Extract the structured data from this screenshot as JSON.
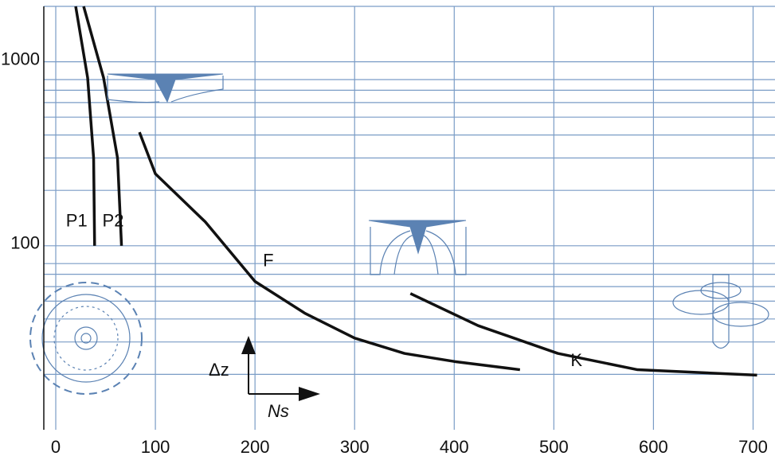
{
  "chart_data": {
    "type": "line",
    "xlim": [
      -12,
      722
    ],
    "xticks": [
      0,
      100,
      200,
      300,
      400,
      500,
      600,
      700
    ],
    "ylim": [
      10,
      2000
    ],
    "yticks": [
      100,
      1000
    ],
    "y_minor_ticks": [
      20,
      30,
      40,
      50,
      60,
      70,
      80,
      200,
      300,
      400,
      500,
      600,
      700,
      800,
      2000
    ],
    "log_y": true,
    "grid": true,
    "series": [
      {
        "name": "P1",
        "color": "#111111",
        "x": [
          20,
          32,
          38,
          39
        ],
        "values": [
          2000,
          818,
          300,
          100
        ]
      },
      {
        "name": "P2",
        "color": "#111111",
        "x": [
          28,
          48,
          62,
          66
        ],
        "values": [
          2000,
          818,
          300,
          100
        ]
      },
      {
        "name": "F",
        "color": "#111111",
        "x": [
          84,
          100,
          150,
          200,
          250,
          300,
          350,
          400,
          466
        ],
        "values": [
          414,
          246,
          135,
          64,
          43,
          31.5,
          26,
          23.5,
          21.2
        ]
      },
      {
        "name": "K",
        "color": "#111111",
        "x": [
          356,
          424,
          504,
          584,
          704
        ],
        "values": [
          55,
          36.8,
          26,
          21.2,
          19.8
        ]
      }
    ],
    "annotations": [
      "Δz",
      "Ns"
    ]
  }
}
